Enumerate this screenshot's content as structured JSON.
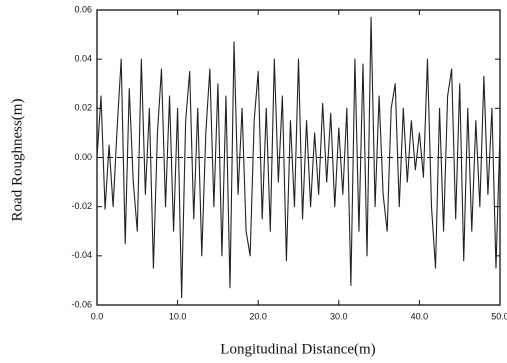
{
  "chart_data": {
    "type": "line",
    "xlabel": "Longitudinal Distance(m)",
    "ylabel": "Road Roughness(m)",
    "x": [
      0,
      0.5,
      1,
      1.5,
      2,
      2.5,
      3,
      3.5,
      4,
      4.5,
      5,
      5.5,
      6,
      6.5,
      7,
      7.5,
      8,
      8.5,
      9,
      9.5,
      10,
      10.5,
      11,
      11.5,
      12,
      12.5,
      13,
      13.5,
      14,
      14.5,
      15,
      15.5,
      16,
      16.5,
      17,
      17.5,
      18,
      18.5,
      19,
      19.5,
      20,
      20.5,
      21,
      21.5,
      22,
      22.5,
      23,
      23.5,
      24,
      24.5,
      25,
      25.5,
      26,
      26.5,
      27,
      27.5,
      28,
      28.5,
      29,
      29.5,
      30,
      30.5,
      31,
      31.5,
      32,
      32.5,
      33,
      33.5,
      34,
      34.5,
      35,
      35.5,
      36,
      36.5,
      37,
      37.5,
      38,
      38.5,
      39,
      39.5,
      40,
      40.5,
      41,
      41.5,
      42,
      42.5,
      43,
      43.5,
      44,
      44.5,
      45,
      45.5,
      46,
      46.5,
      47,
      47.5,
      48,
      48.5,
      49,
      49.5,
      50
    ],
    "series": [
      {
        "color": "#222222",
        "values": [
          0.0,
          0.025,
          -0.021,
          0.005,
          -0.02,
          0.012,
          0.04,
          -0.035,
          0.028,
          -0.01,
          -0.03,
          0.04,
          -0.015,
          0.02,
          -0.045,
          0.01,
          0.036,
          -0.02,
          0.025,
          -0.03,
          0.02,
          -0.057,
          0.015,
          0.035,
          -0.025,
          0.02,
          -0.04,
          0.01,
          0.036,
          -0.02,
          0.03,
          -0.04,
          0.025,
          -0.053,
          0.047,
          -0.015,
          0.02,
          -0.03,
          -0.04,
          0.015,
          0.035,
          -0.025,
          0.02,
          -0.03,
          0.04,
          -0.01,
          0.025,
          -0.042,
          0.015,
          -0.02,
          0.04,
          -0.025,
          0.015,
          -0.02,
          0.01,
          -0.015,
          0.022,
          -0.01,
          0.018,
          -0.02,
          0.012,
          -0.015,
          0.02,
          -0.052,
          0.04,
          -0.03,
          0.038,
          -0.04,
          0.057,
          -0.02,
          0.025,
          -0.015,
          -0.03,
          0.02,
          0.03,
          -0.02,
          0.02,
          -0.01,
          0.015,
          -0.005,
          0.01,
          -0.008,
          0.04,
          -0.02,
          -0.045,
          0.02,
          -0.03,
          0.025,
          0.036,
          -0.025,
          0.03,
          -0.042,
          0.02,
          -0.03,
          0.015,
          -0.02,
          0.033,
          -0.015,
          0.02,
          -0.045,
          0.01
        ]
      }
    ],
    "reference_line": 0,
    "xlim": [
      0,
      50
    ],
    "xticks": [
      {
        "value": 0,
        "label": "0.0"
      },
      {
        "value": 10,
        "label": "10.0"
      },
      {
        "value": 20,
        "label": "20.0"
      },
      {
        "value": 30,
        "label": "30.0"
      },
      {
        "value": 40,
        "label": "40.0"
      },
      {
        "value": 50,
        "label": "50.0"
      }
    ],
    "ylim": [
      -0.06,
      0.06
    ],
    "yticks": [
      -0.06,
      -0.04,
      -0.02,
      {
        "value": 0,
        "label": "0.00"
      },
      0.02,
      0.04,
      0.06
    ]
  }
}
